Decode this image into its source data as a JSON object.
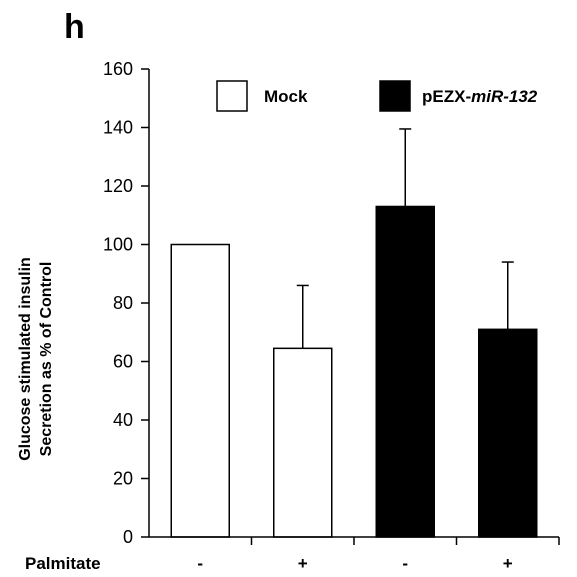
{
  "panel_label": "h",
  "chart_data": {
    "type": "bar",
    "ylabel_lines": [
      "Glucose stimulated insulin",
      "Secretion as % of Control"
    ],
    "ylim": [
      0,
      160
    ],
    "yticks": [
      0,
      20,
      40,
      60,
      80,
      100,
      120,
      140,
      160
    ],
    "grid": false,
    "legend_position": "top",
    "legend": [
      {
        "name": "Mock",
        "name_prefix": "Mock",
        "name_italic": "",
        "color": "#ffffff"
      },
      {
        "name": "pEZX-miR-132",
        "name_prefix": "pEZX-",
        "name_italic": "miR-132",
        "color": "#000000"
      }
    ],
    "row_label": "Palmitate",
    "categories": [
      "-",
      "+",
      "-",
      "+"
    ],
    "bars": [
      {
        "series": "Mock",
        "palmitate": "-",
        "value": 100,
        "error": 0,
        "fill": "#ffffff"
      },
      {
        "series": "Mock",
        "palmitate": "+",
        "value": 64.5,
        "error": 21.5,
        "fill": "#ffffff"
      },
      {
        "series": "pEZX-miR-132",
        "palmitate": "-",
        "value": 113,
        "error": 26.5,
        "fill": "#000000"
      },
      {
        "series": "pEZX-miR-132",
        "palmitate": "+",
        "value": 71,
        "error": 23,
        "fill": "#000000"
      }
    ]
  }
}
